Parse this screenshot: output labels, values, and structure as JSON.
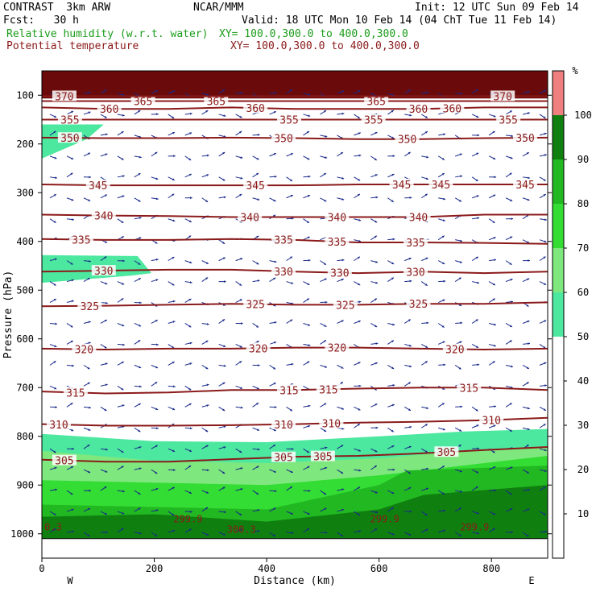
{
  "header": {
    "model": "CONTRAST  3km ARW",
    "org": "NCAR/MMM",
    "init": "Init: 12 UTC Sun 09 Feb 14",
    "fcst": "Fcst:   30 h",
    "valid": "Valid: 18 UTC Mon 10 Feb 14 (04 ChT Tue 11 Feb 14)",
    "field1": "Relative humidity (w.r.t. water)",
    "field1_xy": "XY= 100.0,300.0 to 400.0,300.0",
    "field2": "Potential temperature",
    "field2_xy": "XY= 100.0,300.0 to 400.0,300.0"
  },
  "colors": {
    "theta": "#8b1a1a",
    "wind": "#1a2a8a",
    "rh_50_60": "#4de8a0",
    "rh_60_70": "#7ee87e",
    "rh_70_80": "#33dd33",
    "rh_80_90": "#22b822",
    "rh_90_100": "#0f800f",
    "rh_100": "#f08080",
    "top_band": "#6b0a0a"
  },
  "chart_data": {
    "type": "cross-section",
    "xlabel": "Distance (km)",
    "ylabel": "Pressure (hPa)",
    "xlim": [
      0,
      900
    ],
    "ylim": [
      1050,
      50
    ],
    "xticks": [
      "0",
      "200",
      "400",
      "600",
      "800"
    ],
    "xtick_values": [
      0,
      200,
      400,
      600,
      800
    ],
    "yticks": [
      "100",
      "200",
      "300",
      "400",
      "500",
      "600",
      "700",
      "800",
      "900",
      "1000"
    ],
    "ytick_values": [
      100,
      200,
      300,
      400,
      500,
      600,
      700,
      800,
      900,
      1000
    ],
    "end_labels": {
      "left": "W",
      "right": "E"
    },
    "colorbar": {
      "unit": "%",
      "ticks": [
        "10",
        "20",
        "30",
        "40",
        "50",
        "60",
        "70",
        "80",
        "90",
        "100"
      ],
      "bands": [
        {
          "min": 50,
          "max": 60,
          "color": "#4de8a0"
        },
        {
          "min": 60,
          "max": 70,
          "color": "#7ee87e"
        },
        {
          "min": 70,
          "max": 80,
          "color": "#33dd33"
        },
        {
          "min": 80,
          "max": 90,
          "color": "#22b822"
        },
        {
          "min": 90,
          "max": 100,
          "color": "#0f800f"
        },
        {
          "min": 100,
          "max": 110,
          "color": "#f08080"
        }
      ]
    },
    "theta_contours": [
      {
        "value": 305,
        "p": [
          848,
          852,
          852,
          847,
          842,
          840,
          835,
          828,
          822
        ],
        "labels": [
          {
            "x": 40,
            "text": "305"
          },
          {
            "x": 430,
            "text": "305"
          },
          {
            "x": 500,
            "text": "305"
          },
          {
            "x": 720,
            "text": "305"
          }
        ]
      },
      {
        "value": 310,
        "p": [
          775,
          778,
          778,
          777,
          775,
          772,
          770,
          767,
          762
        ],
        "labels": [
          {
            "x": 30,
            "text": "310"
          },
          {
            "x": 430,
            "text": "310"
          },
          {
            "x": 515,
            "text": "310"
          },
          {
            "x": 800,
            "text": "310"
          }
        ]
      },
      {
        "value": 315,
        "p": [
          708,
          712,
          710,
          705,
          705,
          702,
          700,
          700,
          705
        ],
        "labels": [
          {
            "x": 60,
            "text": "315"
          },
          {
            "x": 440,
            "text": "315"
          },
          {
            "x": 510,
            "text": "315"
          },
          {
            "x": 760,
            "text": "315"
          }
        ]
      },
      {
        "value": 320,
        "p": [
          620,
          622,
          620,
          620,
          618,
          618,
          620,
          622,
          620
        ],
        "labels": [
          {
            "x": 75,
            "text": "320"
          },
          {
            "x": 385,
            "text": "320"
          },
          {
            "x": 525,
            "text": "320"
          },
          {
            "x": 735,
            "text": "320"
          }
        ]
      },
      {
        "value": 325,
        "p": [
          533,
          532,
          530,
          528,
          530,
          530,
          528,
          528,
          525
        ],
        "labels": [
          {
            "x": 85,
            "text": "325"
          },
          {
            "x": 380,
            "text": "325"
          },
          {
            "x": 540,
            "text": "325"
          },
          {
            "x": 670,
            "text": "325"
          }
        ]
      },
      {
        "value": 330,
        "p": [
          462,
          460,
          458,
          458,
          462,
          465,
          462,
          465,
          462
        ],
        "labels": [
          {
            "x": 110,
            "text": "330"
          },
          {
            "x": 430,
            "text": "330"
          },
          {
            "x": 530,
            "text": "330"
          },
          {
            "x": 665,
            "text": "330"
          }
        ]
      },
      {
        "value": 335,
        "p": [
          395,
          397,
          397,
          395,
          397,
          402,
          402,
          403,
          405
        ],
        "labels": [
          {
            "x": 70,
            "text": "335"
          },
          {
            "x": 430,
            "text": "335"
          },
          {
            "x": 525,
            "text": "335"
          },
          {
            "x": 665,
            "text": "335"
          }
        ]
      },
      {
        "value": 340,
        "p": [
          345,
          347,
          348,
          350,
          350,
          350,
          350,
          345,
          345
        ],
        "labels": [
          {
            "x": 110,
            "text": "340"
          },
          {
            "x": 370,
            "text": "340"
          },
          {
            "x": 525,
            "text": "340"
          },
          {
            "x": 670,
            "text": "340"
          }
        ]
      },
      {
        "value": 345,
        "p": [
          283,
          285,
          285,
          285,
          285,
          283,
          283,
          283,
          283
        ],
        "labels": [
          {
            "x": 100,
            "text": "345"
          },
          {
            "x": 380,
            "text": "345"
          },
          {
            "x": 640,
            "text": "345"
          },
          {
            "x": 710,
            "text": "345"
          },
          {
            "x": 860,
            "text": "345"
          }
        ]
      },
      {
        "value": 350,
        "p": [
          187,
          188,
          188,
          187,
          188,
          190,
          190,
          188,
          187
        ],
        "labels": [
          {
            "x": 50,
            "text": "350"
          },
          {
            "x": 430,
            "text": "350"
          },
          {
            "x": 650,
            "text": "350"
          },
          {
            "x": 860,
            "text": "350"
          }
        ]
      },
      {
        "value": 355,
        "p": [
          150,
          150,
          150,
          150,
          150,
          150,
          150,
          150,
          150
        ],
        "labels": [
          {
            "x": 50,
            "text": "355"
          },
          {
            "x": 440,
            "text": "355"
          },
          {
            "x": 590,
            "text": "355"
          },
          {
            "x": 830,
            "text": "355"
          }
        ]
      },
      {
        "value": 360,
        "p": [
          125,
          128,
          128,
          125,
          128,
          128,
          128,
          125,
          125
        ],
        "labels": [
          {
            "x": 120,
            "text": "360"
          },
          {
            "x": 380,
            "text": "360"
          },
          {
            "x": 670,
            "text": "360"
          },
          {
            "x": 730,
            "text": "360"
          }
        ]
      },
      {
        "value": 365,
        "p": [
          112,
          112,
          112,
          112,
          112,
          112,
          112,
          112,
          112
        ],
        "labels": [
          {
            "x": 180,
            "text": "365"
          },
          {
            "x": 310,
            "text": "365"
          },
          {
            "x": 595,
            "text": "365"
          }
        ]
      },
      {
        "value": 370,
        "p": [
          102,
          102,
          102,
          102,
          102,
          102,
          102,
          102,
          102
        ],
        "labels": [
          {
            "x": 40,
            "text": "370"
          },
          {
            "x": 820,
            "text": "370"
          }
        ]
      }
    ],
    "low_theta_labels": [
      {
        "x": 260,
        "p": 968,
        "text": "299.9"
      },
      {
        "x": 355,
        "p": 990,
        "text": "300.3"
      },
      {
        "x": 610,
        "p": 968,
        "text": "299.9"
      },
      {
        "x": 770,
        "p": 985,
        "text": "299.9"
      },
      {
        "x": 20,
        "p": 985,
        "text": "0.3"
      }
    ],
    "rh_regions": [
      {
        "band": "rh_50_60",
        "points": [
          [
            0,
            160
          ],
          [
            110,
            160
          ],
          [
            80,
            190
          ],
          [
            0,
            230
          ]
        ]
      },
      {
        "band": "rh_50_60",
        "points": [
          [
            0,
            428
          ],
          [
            170,
            430
          ],
          [
            195,
            465
          ],
          [
            160,
            470
          ],
          [
            0,
            485
          ]
        ]
      },
      {
        "band": "rh_50_60",
        "points": [
          [
            0,
            795
          ],
          [
            200,
            810
          ],
          [
            400,
            812
          ],
          [
            600,
            800
          ],
          [
            750,
            790
          ],
          [
            900,
            785
          ],
          [
            900,
            1010
          ],
          [
            0,
            1010
          ]
        ]
      },
      {
        "band": "rh_60_70",
        "points": [
          [
            0,
            830
          ],
          [
            200,
            850
          ],
          [
            400,
            855
          ],
          [
            600,
            845
          ],
          [
            750,
            830
          ],
          [
            900,
            820
          ],
          [
            900,
            1010
          ],
          [
            0,
            1010
          ]
        ]
      },
      {
        "band": "rh_70_80",
        "points": [
          [
            0,
            890
          ],
          [
            200,
            895
          ],
          [
            400,
            900
          ],
          [
            600,
            880
          ],
          [
            750,
            860
          ],
          [
            900,
            840
          ],
          [
            900,
            1010
          ],
          [
            0,
            1010
          ]
        ]
      },
      {
        "band": "rh_80_90",
        "points": [
          [
            0,
            940
          ],
          [
            200,
            945
          ],
          [
            400,
            950
          ],
          [
            600,
            900
          ],
          [
            650,
            870
          ],
          [
            900,
            860
          ],
          [
            900,
            1010
          ],
          [
            0,
            1010
          ]
        ]
      },
      {
        "band": "rh_90_100",
        "points": [
          [
            0,
            965
          ],
          [
            200,
            960
          ],
          [
            400,
            975
          ],
          [
            600,
            950
          ],
          [
            680,
            920
          ],
          [
            900,
            900
          ],
          [
            900,
            1010
          ],
          [
            0,
            1010
          ]
        ]
      }
    ]
  }
}
